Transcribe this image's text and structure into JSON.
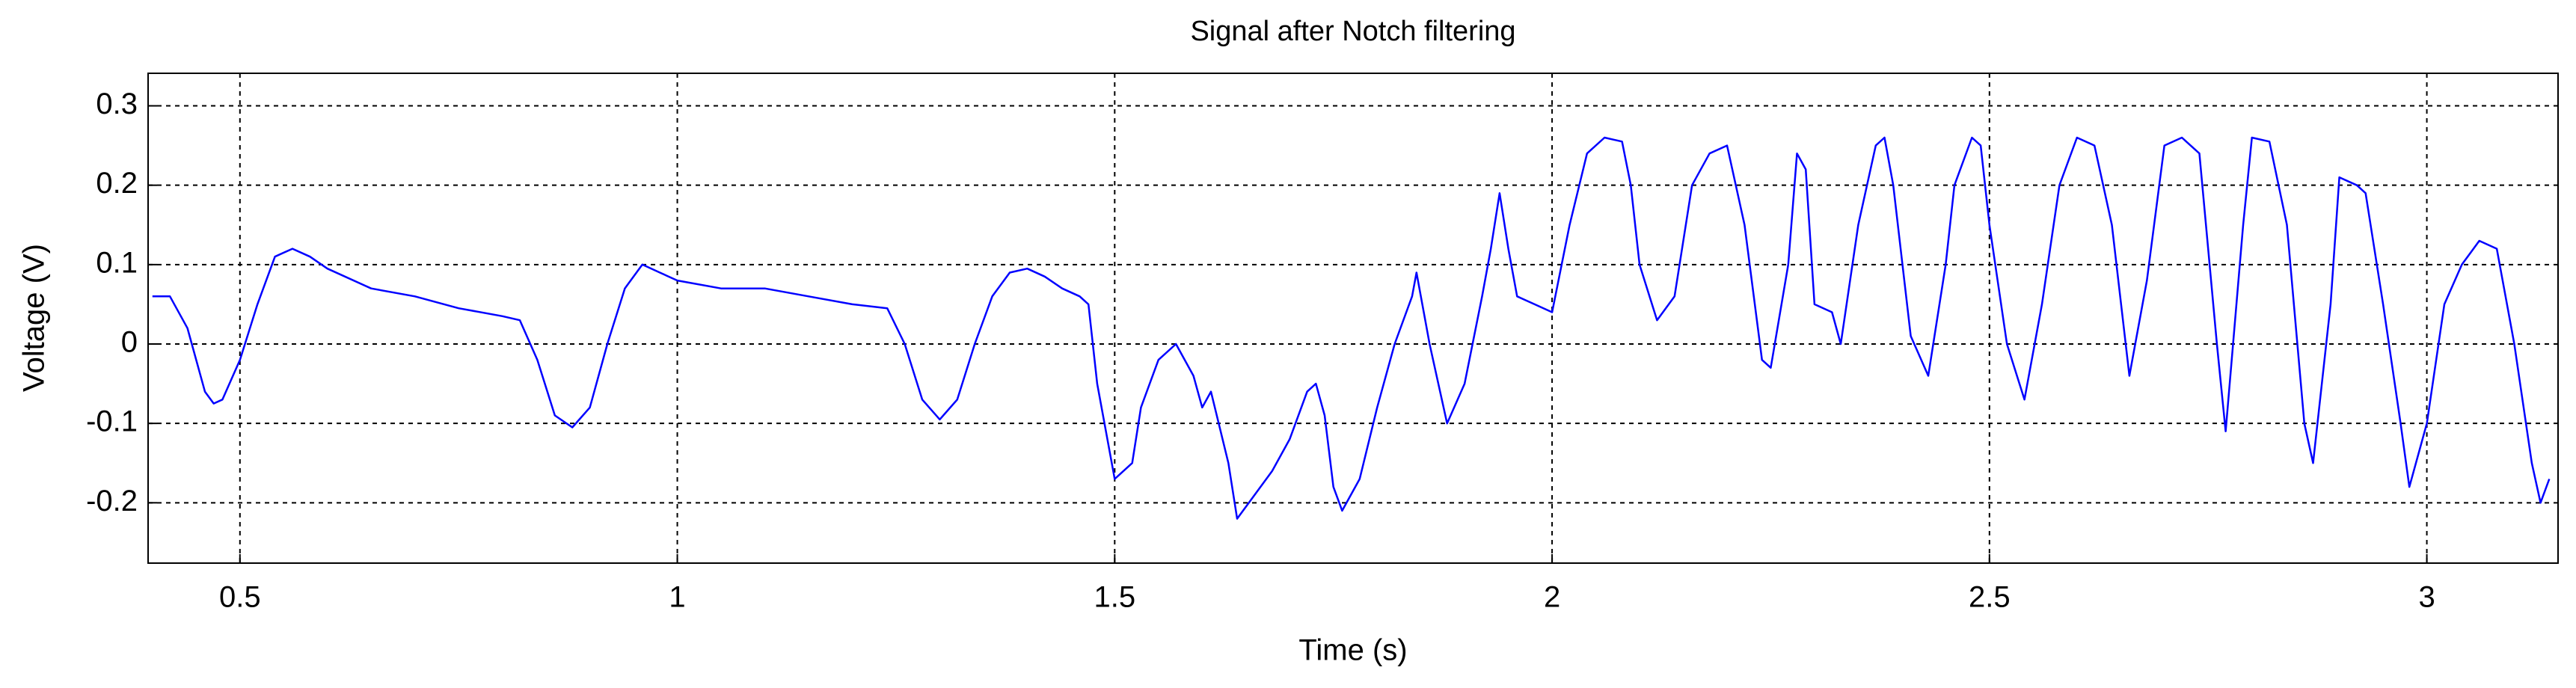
{
  "chart_data": {
    "type": "line",
    "title": "Signal after Notch filtering",
    "x_label": "Time (s)",
    "y_label": "Voltage (V)",
    "x": [
      0.4,
      0.42,
      0.44,
      0.46,
      0.47,
      0.48,
      0.5,
      0.52,
      0.54,
      0.56,
      0.58,
      0.6,
      0.65,
      0.7,
      0.75,
      0.8,
      0.82,
      0.84,
      0.86,
      0.88,
      0.9,
      0.92,
      0.94,
      0.96,
      0.98,
      1.0,
      1.05,
      1.1,
      1.15,
      1.2,
      1.24,
      1.26,
      1.28,
      1.3,
      1.32,
      1.34,
      1.36,
      1.38,
      1.4,
      1.42,
      1.44,
      1.46,
      1.47,
      1.48,
      1.5,
      1.52,
      1.53,
      1.55,
      1.57,
      1.59,
      1.6,
      1.61,
      1.63,
      1.64,
      1.66,
      1.68,
      1.7,
      1.72,
      1.73,
      1.74,
      1.75,
      1.76,
      1.78,
      1.8,
      1.82,
      1.84,
      1.845,
      1.86,
      1.88,
      1.9,
      1.92,
      1.93,
      1.94,
      1.95,
      1.96,
      1.98,
      2.0,
      2.02,
      2.04,
      2.06,
      2.08,
      2.09,
      2.1,
      2.12,
      2.14,
      2.16,
      2.18,
      2.2,
      2.22,
      2.24,
      2.25,
      2.27,
      2.28,
      2.29,
      2.3,
      2.32,
      2.33,
      2.35,
      2.37,
      2.38,
      2.39,
      2.41,
      2.43,
      2.45,
      2.46,
      2.48,
      2.49,
      2.5,
      2.52,
      2.54,
      2.56,
      2.58,
      2.6,
      2.62,
      2.64,
      2.66,
      2.68,
      2.7,
      2.72,
      2.74,
      2.76,
      2.77,
      2.79,
      2.8,
      2.82,
      2.84,
      2.86,
      2.87,
      2.89,
      2.9,
      2.92,
      2.93,
      2.95,
      2.97,
      2.98,
      3.0,
      3.02,
      3.04,
      3.06,
      3.08,
      3.1,
      3.12,
      3.13,
      3.14
    ],
    "values": [
      0.06,
      0.06,
      0.02,
      -0.06,
      -0.075,
      -0.07,
      -0.02,
      0.05,
      0.11,
      0.12,
      0.11,
      0.095,
      0.07,
      0.06,
      0.045,
      0.035,
      0.03,
      -0.02,
      -0.09,
      -0.105,
      -0.08,
      0.0,
      0.07,
      0.1,
      0.09,
      0.08,
      0.07,
      0.07,
      0.06,
      0.05,
      0.045,
      0.0,
      -0.07,
      -0.095,
      -0.07,
      0.0,
      0.06,
      0.09,
      0.095,
      0.085,
      0.07,
      0.06,
      0.05,
      -0.05,
      -0.17,
      -0.15,
      -0.08,
      -0.02,
      0.0,
      -0.04,
      -0.08,
      -0.06,
      -0.15,
      -0.22,
      -0.19,
      -0.16,
      -0.12,
      -0.06,
      -0.05,
      -0.09,
      -0.18,
      -0.21,
      -0.17,
      -0.08,
      0.0,
      0.06,
      0.09,
      0.0,
      -0.1,
      -0.05,
      0.06,
      0.12,
      0.19,
      0.12,
      0.06,
      0.05,
      0.04,
      0.15,
      0.24,
      0.26,
      0.255,
      0.2,
      0.1,
      0.03,
      0.06,
      0.2,
      0.24,
      0.25,
      0.15,
      -0.02,
      -0.03,
      0.1,
      0.24,
      0.22,
      0.05,
      0.04,
      0.0,
      0.15,
      0.25,
      0.26,
      0.2,
      0.01,
      -0.04,
      0.1,
      0.2,
      0.26,
      0.25,
      0.15,
      0.0,
      -0.07,
      0.05,
      0.2,
      0.26,
      0.25,
      0.15,
      -0.04,
      0.08,
      0.25,
      0.26,
      0.24,
      0.0,
      -0.11,
      0.15,
      0.26,
      0.255,
      0.15,
      -0.1,
      -0.15,
      0.05,
      0.21,
      0.2,
      0.19,
      0.05,
      -0.1,
      -0.18,
      -0.1,
      0.05,
      0.1,
      0.13,
      0.12,
      0.0,
      -0.15,
      -0.2,
      -0.17
    ],
    "color": "#0000ff",
    "xlim": [
      0.395,
      3.15
    ],
    "ylim": [
      -0.276,
      0.341
    ],
    "xticks": [
      0.5,
      1,
      1.5,
      2,
      2.5,
      3
    ],
    "yticks": [
      -0.2,
      -0.1,
      0,
      0.1,
      0.2,
      0.3
    ],
    "grid": true
  }
}
